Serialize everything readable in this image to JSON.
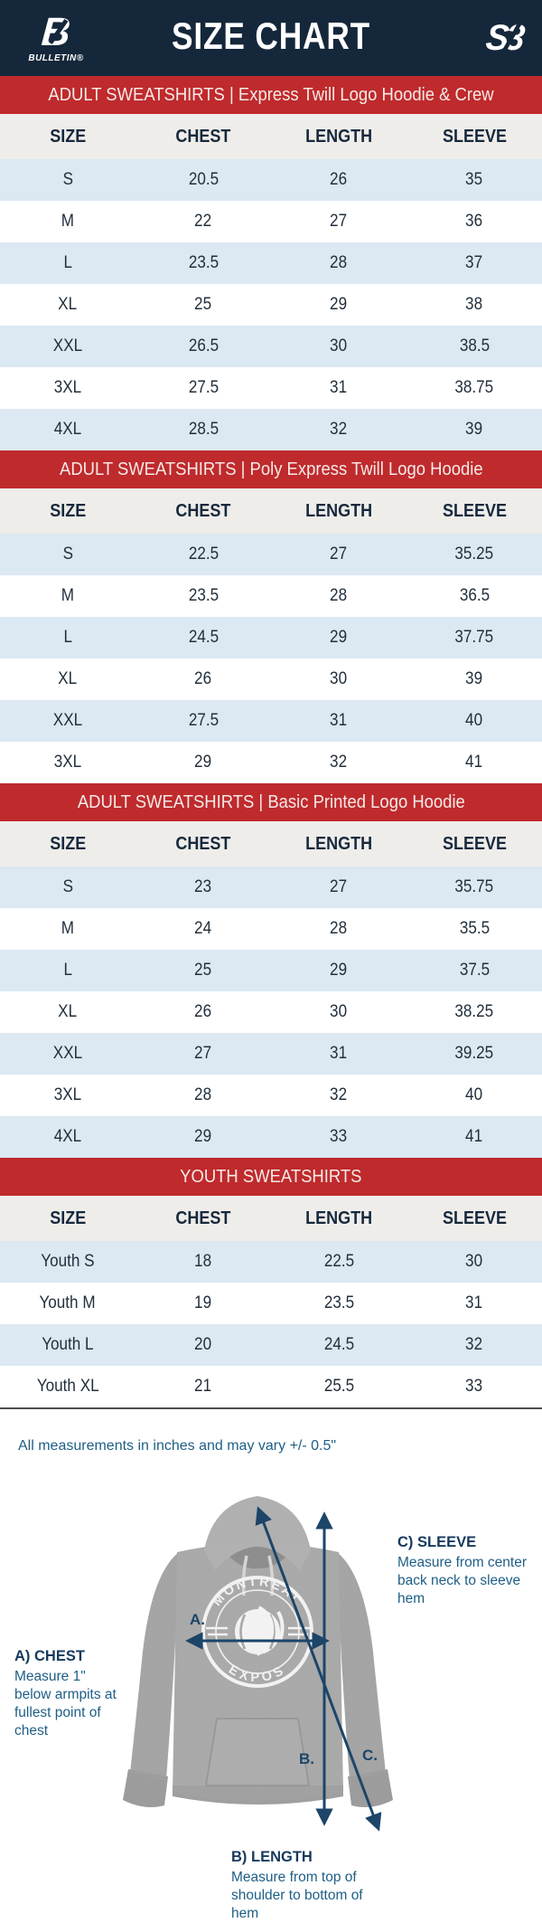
{
  "header": {
    "title": "SIZE CHART",
    "brand_left": "BULLETIN®",
    "brand_left_glyph": "B",
    "brand_right": "S3"
  },
  "columns": [
    "SIZE",
    "CHEST",
    "LENGTH",
    "SLEEVE"
  ],
  "sections": [
    {
      "title": "ADULT SWEATSHIRTS | Express Twill Logo Hoodie & Crew",
      "rows": [
        [
          "S",
          "20.5",
          "26",
          "35"
        ],
        [
          "M",
          "22",
          "27",
          "36"
        ],
        [
          "L",
          "23.5",
          "28",
          "37"
        ],
        [
          "XL",
          "25",
          "29",
          "38"
        ],
        [
          "XXL",
          "26.5",
          "30",
          "38.5"
        ],
        [
          "3XL",
          "27.5",
          "31",
          "38.75"
        ],
        [
          "4XL",
          "28.5",
          "32",
          "39"
        ]
      ]
    },
    {
      "title": "ADULT SWEATSHIRTS | Poly Express Twill Logo Hoodie",
      "rows": [
        [
          "S",
          "22.5",
          "27",
          "35.25"
        ],
        [
          "M",
          "23.5",
          "28",
          "36.5"
        ],
        [
          "L",
          "24.5",
          "29",
          "37.75"
        ],
        [
          "XL",
          "26",
          "30",
          "39"
        ],
        [
          "XXL",
          "27.5",
          "31",
          "40"
        ],
        [
          "3XL",
          "29",
          "32",
          "41"
        ]
      ]
    },
    {
      "title": "ADULT SWEATSHIRTS | Basic Printed Logo Hoodie",
      "rows": [
        [
          "S",
          "23",
          "27",
          "35.75"
        ],
        [
          "M",
          "24",
          "28",
          "35.5"
        ],
        [
          "L",
          "25",
          "29",
          "37.5"
        ],
        [
          "XL",
          "26",
          "30",
          "38.25"
        ],
        [
          "XXL",
          "27",
          "31",
          "39.25"
        ],
        [
          "3XL",
          "28",
          "32",
          "40"
        ],
        [
          "4XL",
          "29",
          "33",
          "41"
        ]
      ]
    },
    {
      "title": "YOUTH SWEATSHIRTS",
      "rows": [
        [
          "Youth S",
          "18",
          "22.5",
          "30"
        ],
        [
          "Youth M",
          "19",
          "23.5",
          "31"
        ],
        [
          "Youth L",
          "20",
          "24.5",
          "32"
        ],
        [
          "Youth XL",
          "21",
          "25.5",
          "33"
        ]
      ]
    }
  ],
  "note": "All measurements in inches and may vary +/- 0.5\"",
  "diagram": {
    "chest_label": {
      "title": "A) CHEST",
      "desc": "Measure 1\" below armpits at fullest point of chest"
    },
    "length_label": {
      "title": "B) LENGTH",
      "desc": "Measure from top of shoulder to bottom of hem"
    },
    "sleeve_label": {
      "title": "C) SLEEVE",
      "desc": "Measure from center back neck to sleeve hem"
    },
    "arrow_a": "A.",
    "arrow_b": "B.",
    "arrow_c": "C.",
    "shirt_logo_top": "MONTREAL",
    "shirt_logo_bottom": "EXPOS"
  },
  "colors": {
    "navy_header": "#15273B",
    "banner_red": "#BF2A2D",
    "row_blue": "#DCE8F2",
    "header_row_gray": "#EFEDEA",
    "text_navy": "#16293D",
    "arrow_navy": "#1D4569",
    "note_blue": "#1E5E86",
    "hoodie_gray": "#A8A8A8"
  }
}
